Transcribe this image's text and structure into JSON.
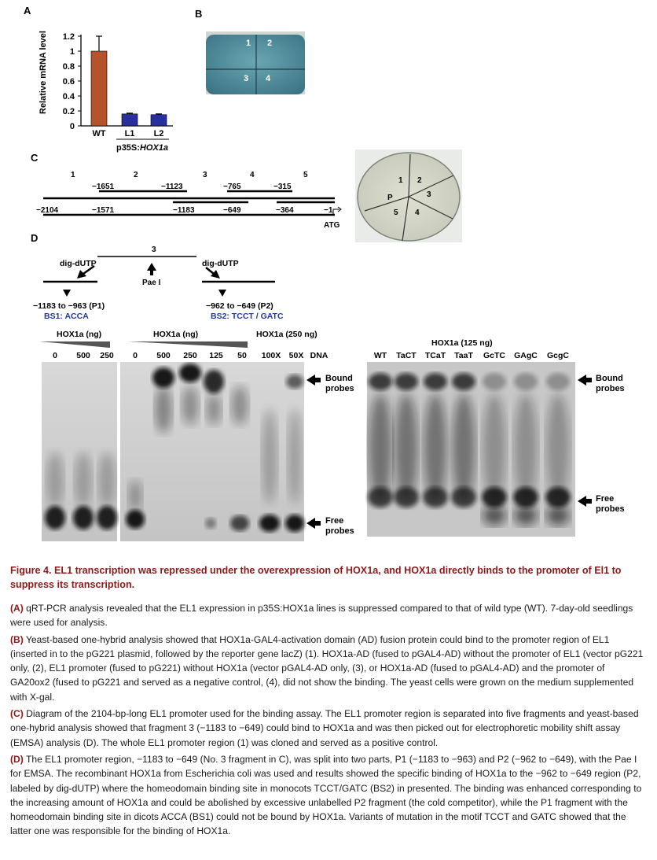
{
  "panelA": {
    "label": "A",
    "chart_data": {
      "type": "bar",
      "categories": [
        "WT",
        "L1",
        "L2"
      ],
      "values": [
        1.0,
        0.16,
        0.15
      ],
      "errors": [
        0.2,
        0.01,
        0.01
      ],
      "colors": [
        "#b5532b",
        "#2a2f9e",
        "#2a2f9e"
      ],
      "ylabel": "Relative mRNA level",
      "ylim": [
        0,
        1.2
      ],
      "yticks": [
        "1.2",
        "1",
        "0.8",
        "0.6",
        "0.4",
        "0.2",
        "0"
      ],
      "group_label": "p35S:HOX1a"
    }
  },
  "panelB": {
    "label": "B",
    "sectors": [
      "1",
      "2",
      "3",
      "4"
    ]
  },
  "panelC": {
    "label": "C",
    "fragment_numbers": [
      "1",
      "2",
      "3",
      "4",
      "5"
    ],
    "top_positions": [
      "−1651",
      "−1123",
      "−765",
      "−315"
    ],
    "bottom_positions": [
      "−2104",
      "−1571",
      "−1183",
      "−649",
      "−364",
      "−1"
    ],
    "atg": "ATG",
    "plate_sectors": [
      "1",
      "2",
      "3",
      "4",
      "5",
      "P"
    ]
  },
  "panelD": {
    "label": "D",
    "fragment": "3",
    "enzyme": "Pae I",
    "dig_left": "dig-dUTP",
    "dig_right": "dig-dUTP",
    "p1": "−1183 to −963 (P1)",
    "p2": "−962 to −649 (P2)",
    "bs1": "BS1: ACCA",
    "bs2": "BS2: TCCT / GATC",
    "gel1_header": "HOX1a (ng)",
    "gel1_lanes": [
      "0",
      "500",
      "250"
    ],
    "gel2_header": "HOX1a (ng)",
    "gel2_lanes": [
      "0",
      "500",
      "250",
      "125",
      "50"
    ],
    "gel3_header": "HOX1a (250 ng)",
    "gel3_lanes": [
      "100X",
      "50X",
      "DNA"
    ],
    "gel4_header": "HOX1a (125 ng)",
    "gel4_lanes": [
      "WT",
      "TaCT",
      "TCaT",
      "TaaT",
      "GcTC",
      "GAgC",
      "GcgC"
    ],
    "bound_label": "Bound probes",
    "free_label": "Free probes"
  },
  "caption": {
    "title": "Figure 4.  EL1 transcription was repressed under the overexpression of HOX1a, and HOX1a directly binds to the promoter of El1 to suppress its transcription.",
    "A_label": "(A)",
    "A": "qRT-PCR analysis revealed that the EL1 expression in p35S:HOX1a lines is suppressed compared to that of wild type (WT). 7-day-old seedlings were used for analysis.",
    "B_label": "(B)",
    "B": "Yeast-based one-hybrid analysis showed that HOX1a-GAL4-activation domain (AD) fusion protein could bind to the promoter region of EL1 (inserted in to the pG221 plasmid, followed by the reporter gene lacZ) (1). HOX1a-AD (fused to pGAL4-AD) without the promoter of EL1 (vector pG221 only, (2), EL1 promoter (fused to pG221) without HOX1a (vector pGAL4-AD only, (3), or HOX1a-AD (fused to pGAL4-AD) and the promoter of GA20ox2 (fused to pG221 and served as a negative control, (4), did not show the binding. The yeast cells were grown on the medium supplemented with X-gal.",
    "C_label": "(C)",
    "C": "Diagram of the 2104-bp-long EL1 promoter used for the binding assay. The EL1 promoter region is separated into five fragments and yeast-based one-hybrid analysis showed that fragment 3 (−1183 to −649) could bind to HOX1a and was then picked out for electrophoretic mobility shift assay (EMSA) analysis (D). The whole EL1 promoter region (1) was cloned and served as a positive control.",
    "D_label": "(D)",
    "D": "The EL1 promoter region, −1183 to −649 (No. 3 fragment in C), was split into two parts, P1 (−1183 to −963) and P2 (−962 to −649), with the Pae I for EMSA. The recombinant HOX1a from Escherichia coli was used and results showed the specific binding of HOX1a to the −962 to −649 region (P2, labeled by dig-dUTP) where the homeodomain binding site in monocots TCCT/GATC (BS2) in presented. The binding was enhanced corresponding to the increasing amount of HOX1a and could be abolished by excessive unlabelled P2 fragment (the cold competitor), while the P1 fragment with the homeodomain binding site in dicots ACCA (BS1) could not be bound by HOX1a. Variants of mutation in the motif TCCT and GATC showed that the latter one was responsible for the binding of HOX1a."
  }
}
